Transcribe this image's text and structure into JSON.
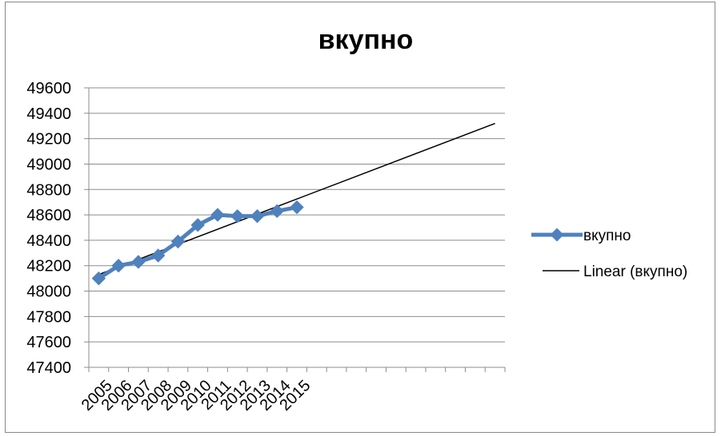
{
  "chart_data": {
    "type": "line",
    "title": "вкупно",
    "xlabel": "",
    "ylabel": "",
    "categories": [
      "2005",
      "2006",
      "2007",
      "2008",
      "2009",
      "2010",
      "2011",
      "2012",
      "2013",
      "2014",
      "2015"
    ],
    "series": [
      {
        "name": "вкупно",
        "values": [
          48100,
          48200,
          48230,
          48280,
          48390,
          48520,
          48600,
          48590,
          48590,
          48630,
          48660
        ],
        "color": "#4F81BD",
        "marker": "diamond"
      }
    ],
    "trendline": {
      "name": "Linear (вкупно)",
      "type": "linear",
      "start": [
        1,
        48130
      ],
      "end": [
        21,
        49320
      ],
      "color": "#000000"
    },
    "x_slots": 21,
    "yticks": [
      "47400",
      "47600",
      "47800",
      "48000",
      "48200",
      "48400",
      "48600",
      "48800",
      "49000",
      "49200",
      "49400",
      "49600"
    ],
    "ylim": [
      47400,
      49600
    ],
    "grid": true,
    "legend_position": "right"
  }
}
